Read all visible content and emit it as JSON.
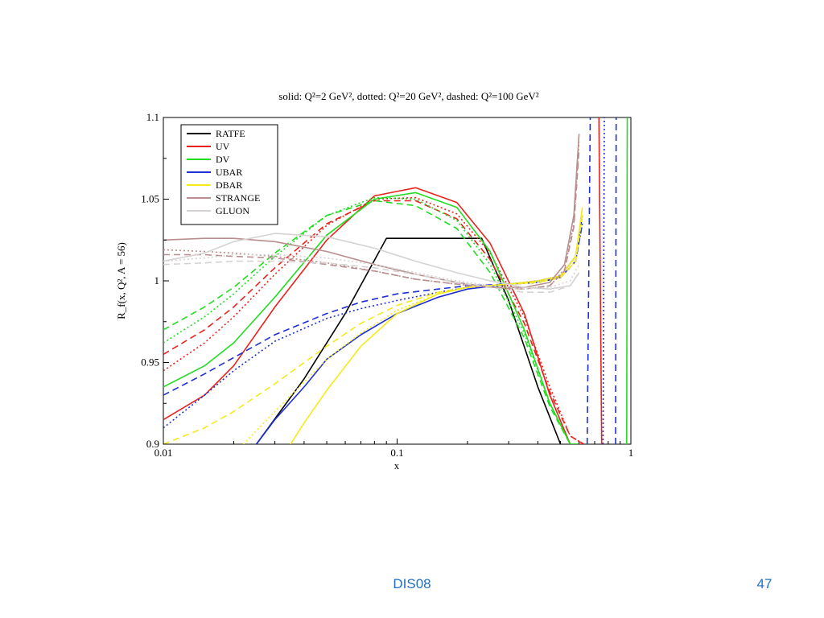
{
  "slide": {
    "footer_text": "DIS08",
    "page_number": "47"
  },
  "chart_data": {
    "type": "line",
    "title": "solid: Q²=2 GeV², dotted: Q²=20 GeV², dashed: Q²=100 GeV²",
    "xlabel": "x",
    "ylabel": "R_f(x, Q², A = 56)",
    "x_scale": "log",
    "xlim": [
      0.01,
      1
    ],
    "ylim": [
      0.9,
      1.1
    ],
    "x_ticks": [
      "0.01",
      "0.1",
      "1"
    ],
    "y_ticks": [
      "0.9",
      "0.95",
      "1",
      "1.05",
      "1.1"
    ],
    "legend_position": "top-left",
    "line_styles": {
      "solid": "Q2=2",
      "dotted": "Q2=20",
      "dashed": "Q2=100"
    },
    "legend": [
      {
        "name": "RATFE",
        "color": "#000000"
      },
      {
        "name": "UV",
        "color": "#e8231e"
      },
      {
        "name": "DV",
        "color": "#22dd22"
      },
      {
        "name": "UBAR",
        "color": "#1f2fd6"
      },
      {
        "name": "DBAR",
        "color": "#f5ea1a"
      },
      {
        "name": "STRANGE",
        "color": "#b88e8e"
      },
      {
        "name": "GLUON",
        "color": "#d6d2d2"
      }
    ],
    "series": [
      {
        "name": "RATFE",
        "q2": 2,
        "style": "solid",
        "color": "#000000",
        "x": [
          0.025,
          0.04,
          0.06,
          0.09,
          0.12,
          0.17,
          0.23,
          0.3,
          0.4,
          0.5
        ],
        "y": [
          0.9,
          0.94,
          0.98,
          1.026,
          1.026,
          1.026,
          1.026,
          0.988,
          0.935,
          0.9
        ]
      },
      {
        "name": "UV",
        "q2": 2,
        "style": "solid",
        "color": "#e8231e",
        "x": [
          0.01,
          0.015,
          0.02,
          0.03,
          0.05,
          0.08,
          0.12,
          0.18,
          0.25,
          0.35,
          0.45,
          0.55,
          0.62
        ],
        "y": [
          0.915,
          0.93,
          0.948,
          0.984,
          1.025,
          1.052,
          1.057,
          1.048,
          1.023,
          0.98,
          0.93,
          0.9,
          0.9
        ]
      },
      {
        "name": "UV",
        "q2": 20,
        "style": "dotted",
        "color": "#e8231e",
        "x": [
          0.01,
          0.015,
          0.02,
          0.03,
          0.05,
          0.08,
          0.12,
          0.18,
          0.25,
          0.35,
          0.45,
          0.55,
          0.63
        ],
        "y": [
          0.945,
          0.962,
          0.978,
          1.004,
          1.034,
          1.05,
          1.051,
          1.041,
          1.017,
          0.978,
          0.935,
          0.905,
          0.9
        ]
      },
      {
        "name": "UV",
        "q2": 100,
        "style": "dashed",
        "color": "#e8231e",
        "x": [
          0.01,
          0.015,
          0.02,
          0.03,
          0.05,
          0.08,
          0.12,
          0.18,
          0.25,
          0.35,
          0.45,
          0.55,
          0.63
        ],
        "y": [
          0.955,
          0.97,
          0.984,
          1.008,
          1.035,
          1.049,
          1.049,
          1.038,
          1.013,
          0.974,
          0.932,
          0.905,
          0.9
        ]
      },
      {
        "name": "DV",
        "q2": 2,
        "style": "solid",
        "color": "#22dd22",
        "x": [
          0.01,
          0.015,
          0.02,
          0.03,
          0.05,
          0.08,
          0.12,
          0.18,
          0.25,
          0.35,
          0.45,
          0.55,
          0.6
        ],
        "y": [
          0.935,
          0.948,
          0.962,
          0.99,
          1.028,
          1.05,
          1.054,
          1.045,
          1.018,
          0.97,
          0.925,
          0.9,
          0.9
        ]
      },
      {
        "name": "DV",
        "q2": 20,
        "style": "dotted",
        "color": "#22dd22",
        "x": [
          0.01,
          0.015,
          0.02,
          0.03,
          0.05,
          0.08,
          0.12,
          0.18,
          0.25,
          0.35,
          0.45,
          0.55,
          0.6
        ],
        "y": [
          0.962,
          0.978,
          0.992,
          1.015,
          1.04,
          1.051,
          1.05,
          1.037,
          1.01,
          0.968,
          0.925,
          0.9,
          0.9
        ]
      },
      {
        "name": "DV",
        "q2": 100,
        "style": "dashed",
        "color": "#22dd22",
        "x": [
          0.01,
          0.015,
          0.02,
          0.03,
          0.05,
          0.08,
          0.12,
          0.18,
          0.25,
          0.35,
          0.45,
          0.55,
          0.6
        ],
        "y": [
          0.97,
          0.984,
          0.996,
          1.017,
          1.04,
          1.049,
          1.046,
          1.032,
          1.005,
          0.965,
          0.923,
          0.9,
          0.9
        ]
      },
      {
        "name": "UBAR",
        "q2": 2,
        "style": "solid",
        "color": "#1f2fd6",
        "x": [
          0.025,
          0.03,
          0.04,
          0.05,
          0.07,
          0.1,
          0.15,
          0.2,
          0.3,
          0.4,
          0.5,
          0.58,
          0.62
        ],
        "y": [
          0.9,
          0.915,
          0.935,
          0.952,
          0.967,
          0.98,
          0.99,
          0.995,
          0.998,
          1.0,
          1.003,
          1.015,
          1.04
        ]
      },
      {
        "name": "UBAR",
        "q2": 20,
        "style": "dotted",
        "color": "#1f2fd6",
        "x": [
          0.01,
          0.015,
          0.02,
          0.03,
          0.05,
          0.07,
          0.1,
          0.15,
          0.2,
          0.3,
          0.4,
          0.5,
          0.58,
          0.62
        ],
        "y": [
          0.91,
          0.93,
          0.945,
          0.963,
          0.977,
          0.983,
          0.988,
          0.993,
          0.996,
          0.998,
          0.999,
          1.002,
          1.012,
          1.035
        ]
      },
      {
        "name": "UBAR",
        "q2": 100,
        "style": "dashed",
        "color": "#1f2fd6",
        "x": [
          0.01,
          0.015,
          0.02,
          0.03,
          0.05,
          0.07,
          0.1,
          0.15,
          0.2,
          0.3,
          0.4,
          0.5,
          0.58,
          0.62
        ],
        "y": [
          0.93,
          0.943,
          0.953,
          0.967,
          0.98,
          0.987,
          0.992,
          0.995,
          0.997,
          0.998,
          0.999,
          1.002,
          1.012,
          1.035
        ]
      },
      {
        "name": "DBAR",
        "q2": 2,
        "style": "solid",
        "color": "#f5ea1a",
        "x": [
          0.035,
          0.04,
          0.05,
          0.07,
          0.1,
          0.15,
          0.2,
          0.3,
          0.4,
          0.5,
          0.58,
          0.62
        ],
        "y": [
          0.9,
          0.913,
          0.933,
          0.96,
          0.98,
          0.992,
          0.996,
          0.998,
          1.0,
          1.003,
          1.015,
          1.045
        ]
      },
      {
        "name": "DBAR",
        "q2": 20,
        "style": "dotted",
        "color": "#f5ea1a",
        "x": [
          0.022,
          0.03,
          0.04,
          0.05,
          0.07,
          0.1,
          0.15,
          0.2,
          0.3,
          0.4,
          0.5,
          0.58,
          0.62
        ],
        "y": [
          0.9,
          0.92,
          0.938,
          0.952,
          0.968,
          0.982,
          0.992,
          0.996,
          0.998,
          0.999,
          1.002,
          1.012,
          1.04
        ]
      },
      {
        "name": "DBAR",
        "q2": 100,
        "style": "dashed",
        "color": "#f5ea1a",
        "x": [
          0.01,
          0.015,
          0.02,
          0.03,
          0.05,
          0.07,
          0.1,
          0.15,
          0.2,
          0.3,
          0.4,
          0.5,
          0.58,
          0.62
        ],
        "y": [
          0.9,
          0.91,
          0.92,
          0.937,
          0.96,
          0.974,
          0.985,
          0.993,
          0.996,
          0.998,
          0.999,
          1.002,
          1.012,
          1.04
        ]
      },
      {
        "name": "STRANGE",
        "q2": 2,
        "style": "solid",
        "color": "#b88e8e",
        "x": [
          0.01,
          0.015,
          0.02,
          0.03,
          0.05,
          0.08,
          0.12,
          0.18,
          0.25,
          0.35,
          0.45,
          0.52,
          0.57,
          0.6
        ],
        "y": [
          1.025,
          1.026,
          1.026,
          1.024,
          1.018,
          1.01,
          1.004,
          0.999,
          0.996,
          0.996,
          0.999,
          1.01,
          1.04,
          1.09
        ]
      },
      {
        "name": "STRANGE",
        "q2": 20,
        "style": "dotted",
        "color": "#b88e8e",
        "x": [
          0.01,
          0.015,
          0.02,
          0.03,
          0.05,
          0.08,
          0.12,
          0.18,
          0.25,
          0.35,
          0.45,
          0.52,
          0.57,
          0.6
        ],
        "y": [
          1.019,
          1.018,
          1.017,
          1.015,
          1.011,
          1.006,
          1.001,
          0.998,
          0.996,
          0.995,
          0.997,
          1.007,
          1.035,
          1.085
        ]
      },
      {
        "name": "STRANGE",
        "q2": 100,
        "style": "dashed",
        "color": "#b88e8e",
        "x": [
          0.01,
          0.015,
          0.02,
          0.03,
          0.05,
          0.08,
          0.12,
          0.18,
          0.25,
          0.35,
          0.45,
          0.52,
          0.57,
          0.6
        ],
        "y": [
          1.016,
          1.016,
          1.015,
          1.014,
          1.01,
          1.006,
          1.001,
          0.998,
          0.996,
          0.995,
          0.997,
          1.006,
          1.033,
          1.08
        ]
      },
      {
        "name": "GLUON",
        "q2": 2,
        "style": "solid",
        "color": "#d6d2d2",
        "x": [
          0.01,
          0.015,
          0.02,
          0.03,
          0.05,
          0.08,
          0.12,
          0.18,
          0.25,
          0.35,
          0.45,
          0.55,
          0.6
        ],
        "y": [
          1.012,
          1.017,
          1.024,
          1.029,
          1.027,
          1.02,
          1.012,
          1.005,
          1.0,
          0.996,
          0.995,
          0.997,
          1.005
        ]
      },
      {
        "name": "GLUON",
        "q2": 20,
        "style": "dotted",
        "color": "#d6d2d2",
        "x": [
          0.01,
          0.015,
          0.02,
          0.03,
          0.05,
          0.08,
          0.12,
          0.18,
          0.25,
          0.35,
          0.45,
          0.55,
          0.6
        ],
        "y": [
          1.012,
          1.014,
          1.016,
          1.016,
          1.014,
          1.01,
          1.005,
          1.0,
          0.997,
          0.995,
          0.996,
          1.0,
          1.01
        ]
      },
      {
        "name": "GLUON",
        "q2": 100,
        "style": "dashed",
        "color": "#d6d2d2",
        "x": [
          0.01,
          0.015,
          0.02,
          0.03,
          0.05,
          0.08,
          0.12,
          0.18,
          0.25,
          0.35,
          0.45,
          0.55,
          0.6
        ],
        "y": [
          1.01,
          1.011,
          1.012,
          1.012,
          1.011,
          1.008,
          1.004,
          0.999,
          0.996,
          0.993,
          0.993,
          0.997,
          1.005
        ]
      },
      {
        "name": "UBAR",
        "q2": 100,
        "style": "dashed",
        "color": "#1f2fd6",
        "x": [
          0.65,
          0.66,
          0.67
        ],
        "y": [
          0.9,
          1.0,
          1.1
        ]
      },
      {
        "name": "UBAR",
        "q2": 20,
        "style": "dotted",
        "color": "#1f2fd6",
        "x": [
          0.76,
          0.77
        ],
        "y": [
          0.9,
          1.1
        ]
      },
      {
        "name": "UBAR",
        "q2": 100,
        "style": "dashed",
        "color": "#1f2fd6",
        "x": [
          0.86,
          0.865
        ],
        "y": [
          0.9,
          1.1
        ]
      },
      {
        "name": "DV",
        "q2": 2,
        "style": "solid",
        "color": "#22dd22",
        "x": [
          0.96,
          0.965
        ],
        "y": [
          0.9,
          1.1
        ]
      },
      {
        "name": "UV",
        "q2": 2,
        "style": "solid",
        "color": "#e8231e",
        "x": [
          0.75,
          0.73
        ],
        "y": [
          0.9,
          1.1
        ]
      }
    ]
  }
}
